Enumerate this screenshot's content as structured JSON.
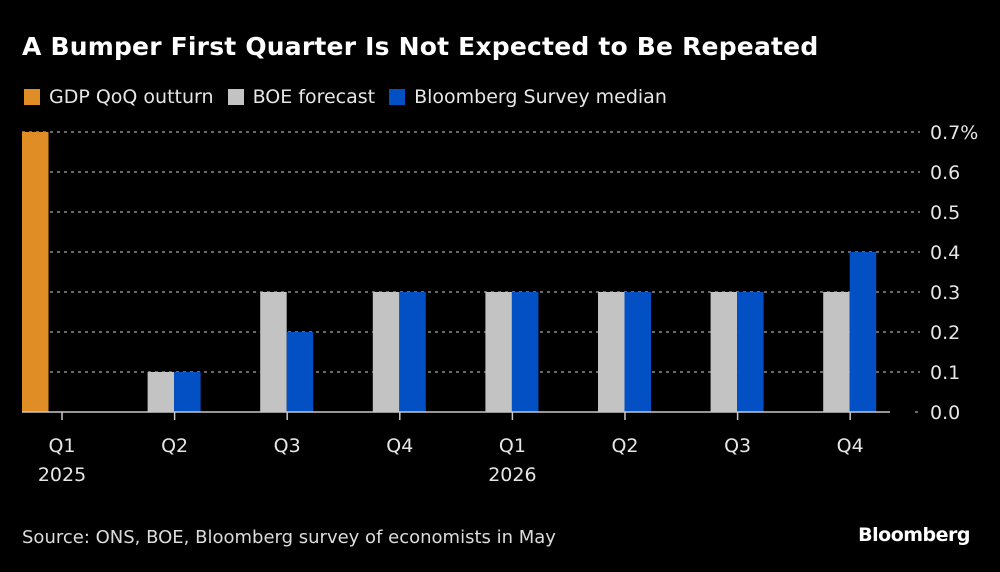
{
  "chart_data": {
    "type": "bar",
    "title": "A Bumper First Quarter Is Not Expected to Be Repeated",
    "categories": [
      "Q1",
      "Q2",
      "Q3",
      "Q4",
      "Q1",
      "Q2",
      "Q3",
      "Q4"
    ],
    "category_years": [
      "2025",
      "",
      "",
      "",
      "2026",
      "",
      "",
      ""
    ],
    "series": [
      {
        "name": "GDP QoQ outturn",
        "color": "#e08d26",
        "values": [
          0.7,
          null,
          null,
          null,
          null,
          null,
          null,
          null
        ]
      },
      {
        "name": "BOE forecast",
        "color": "#c3c3c3",
        "values": [
          null,
          0.1,
          0.3,
          0.3,
          0.3,
          0.3,
          0.3,
          0.3
        ]
      },
      {
        "name": "Bloomberg Survey median",
        "color": "#0250c4",
        "values": [
          null,
          0.1,
          0.2,
          0.3,
          0.3,
          0.3,
          0.3,
          0.4
        ]
      }
    ],
    "xlabel": "",
    "ylabel": "",
    "ylim": [
      0,
      0.7
    ],
    "yticks": [
      "0.0",
      "0.1",
      "0.2",
      "0.3",
      "0.4",
      "0.5",
      "0.6",
      "0.7%"
    ],
    "ytick_values": [
      0,
      0.1,
      0.2,
      0.3,
      0.4,
      0.5,
      0.6,
      0.7
    ],
    "grid": true,
    "y_axis_side": "right",
    "legend_position": "top-left"
  },
  "footer": {
    "source": "Source: ONS, BOE, Bloomberg survey of economists in May",
    "brand": "Bloomberg"
  }
}
